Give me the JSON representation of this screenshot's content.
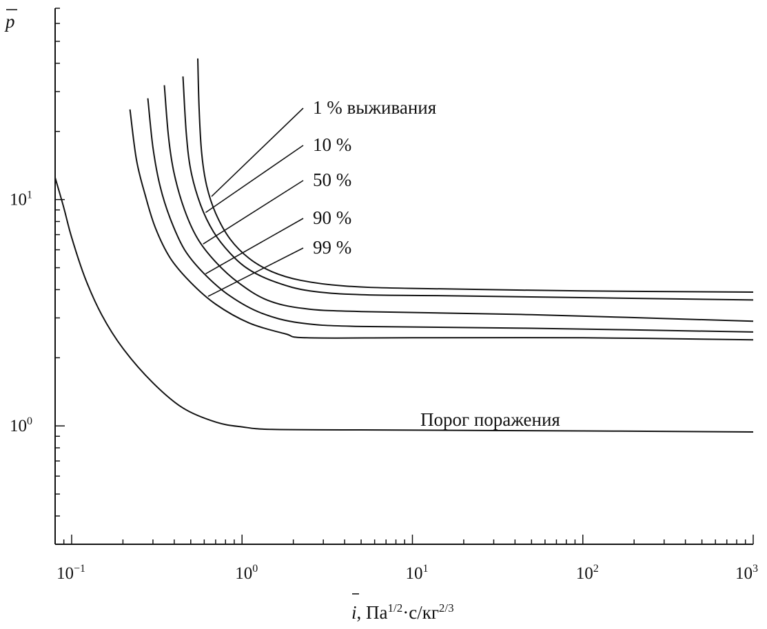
{
  "chart_data": {
    "type": "line",
    "xscale": "log",
    "yscale": "log",
    "xlim": [
      0.08,
      1000
    ],
    "ylim": [
      0.3,
      70
    ],
    "ylabel": "p",
    "xlabel_main": "i",
    "xlabel_units": ", Па",
    "xlabel_units_sup": "1/2",
    "xlabel_units_mid": "·с/кг",
    "xlabel_units_sup2": "2/3",
    "x_tick_labels": [
      {
        "base": "10",
        "exp": "−1",
        "value": 0.1
      },
      {
        "base": "10",
        "exp": "0",
        "value": 1
      },
      {
        "base": "10",
        "exp": "1",
        "value": 10
      },
      {
        "base": "10",
        "exp": "2",
        "value": 100
      },
      {
        "base": "10",
        "exp": "3",
        "value": 1000
      }
    ],
    "y_tick_labels": [
      {
        "base": "10",
        "exp": "0",
        "value": 1
      },
      {
        "base": "10",
        "exp": "1",
        "value": 10
      }
    ],
    "grid": false,
    "series": [
      {
        "name": "1 % выживания",
        "points": [
          [
            0.55,
            42
          ],
          [
            0.56,
            25
          ],
          [
            0.58,
            16
          ],
          [
            0.62,
            11.5
          ],
          [
            0.7,
            8.7
          ],
          [
            0.85,
            6.7
          ],
          [
            1.1,
            5.5
          ],
          [
            1.5,
            4.8
          ],
          [
            2.2,
            4.4
          ],
          [
            4,
            4.15
          ],
          [
            10,
            4.05
          ],
          [
            100,
            3.95
          ],
          [
            1000,
            3.9
          ]
        ]
      },
      {
        "name": "10 %",
        "points": [
          [
            0.45,
            35
          ],
          [
            0.47,
            20
          ],
          [
            0.5,
            13.5
          ],
          [
            0.57,
            9.5
          ],
          [
            0.68,
            7.2
          ],
          [
            0.85,
            5.8
          ],
          [
            1.1,
            4.9
          ],
          [
            1.6,
            4.3
          ],
          [
            2.5,
            3.95
          ],
          [
            5,
            3.8
          ],
          [
            20,
            3.75
          ],
          [
            1000,
            3.6
          ]
        ]
      },
      {
        "name": "50 %",
        "points": [
          [
            0.35,
            32
          ],
          [
            0.37,
            19
          ],
          [
            0.4,
            13
          ],
          [
            0.46,
            9
          ],
          [
            0.55,
            6.7
          ],
          [
            0.7,
            5.3
          ],
          [
            0.95,
            4.3
          ],
          [
            1.4,
            3.6
          ],
          [
            2.3,
            3.3
          ],
          [
            5,
            3.2
          ],
          [
            50,
            3.1
          ],
          [
            1000,
            2.9
          ]
        ]
      },
      {
        "name": "90 %",
        "points": [
          [
            0.28,
            28
          ],
          [
            0.3,
            17
          ],
          [
            0.33,
            11.5
          ],
          [
            0.38,
            8.2
          ],
          [
            0.46,
            6
          ],
          [
            0.6,
            4.7
          ],
          [
            0.85,
            3.75
          ],
          [
            1.3,
            3.15
          ],
          [
            2.2,
            2.85
          ],
          [
            5,
            2.75
          ],
          [
            50,
            2.7
          ],
          [
            1000,
            2.6
          ]
        ]
      },
      {
        "name": "99 %",
        "points": [
          [
            0.22,
            25
          ],
          [
            0.24,
            15
          ],
          [
            0.27,
            10.5
          ],
          [
            0.31,
            7.5
          ],
          [
            0.38,
            5.5
          ],
          [
            0.5,
            4.3
          ],
          [
            0.7,
            3.45
          ],
          [
            1.1,
            2.85
          ],
          [
            1.8,
            2.55
          ],
          [
            2.4,
            2.45
          ],
          [
            10,
            2.45
          ],
          [
            100,
            2.45
          ],
          [
            1000,
            2.4
          ]
        ]
      },
      {
        "name": "Порог поражения",
        "points": [
          [
            0.08,
            12.5
          ],
          [
            0.09,
            9.2
          ],
          [
            0.1,
            6.8
          ],
          [
            0.12,
            4.5
          ],
          [
            0.15,
            3.1
          ],
          [
            0.2,
            2.2
          ],
          [
            0.3,
            1.55
          ],
          [
            0.45,
            1.2
          ],
          [
            0.7,
            1.04
          ],
          [
            1,
            0.99
          ],
          [
            1.5,
            0.965
          ],
          [
            5,
            0.96
          ],
          [
            100,
            0.95
          ],
          [
            1000,
            0.94
          ]
        ]
      }
    ],
    "annotations": [
      {
        "text": "1 % выживания",
        "series": 0,
        "at_x": 0.65
      },
      {
        "text": "10 %",
        "series": 1,
        "at_x": 0.6
      },
      {
        "text": "50 %",
        "series": 2,
        "at_x": 0.58
      },
      {
        "text": "90 %",
        "series": 3,
        "at_x": 0.6
      },
      {
        "text": "99 %",
        "series": 4,
        "at_x": 0.62
      },
      {
        "text": "Порог поражения",
        "series": 5
      }
    ]
  }
}
